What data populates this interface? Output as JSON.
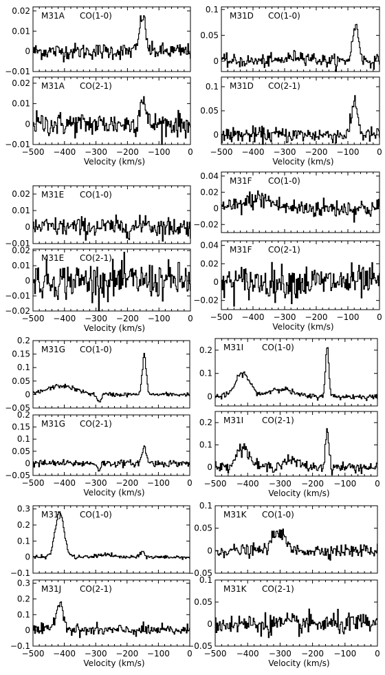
{
  "xlabel": "Velocity (km/s)",
  "chart_data": [
    {
      "type": "line",
      "source": "M31A",
      "line": "CO(1-0)",
      "xlim": [
        -500,
        0
      ],
      "ylim": [
        -0.01,
        0.022
      ],
      "yticks": [
        "0.02",
        "0.01",
        "0",
        "−0.01"
      ],
      "ytick_values": [
        0.02,
        0.01,
        0,
        -0.01
      ],
      "xticks": [],
      "xlabel": "",
      "peaks": [
        {
          "center": -152,
          "width": 9,
          "amp": 0.018
        }
      ],
      "noise": 0.002
    },
    {
      "type": "line",
      "source": "M31A",
      "line": "CO(2-1)",
      "xlim": [
        -500,
        0
      ],
      "ylim": [
        -0.01,
        0.023
      ],
      "yticks": [
        "0.02",
        "0.01",
        "0",
        "−0.01"
      ],
      "ytick_values": [
        0.02,
        0.01,
        0,
        -0.01
      ],
      "xticks": [
        "−500",
        "−400",
        "−300",
        "−200",
        "−100",
        "0"
      ],
      "xlabel": "Velocity (km/s)",
      "peaks": [
        {
          "center": -152,
          "width": 8,
          "amp": 0.014
        }
      ],
      "noise": 0.003
    },
    {
      "type": "line",
      "source": "M31D",
      "line": "CO(1-0)",
      "xlim": [
        -500,
        0
      ],
      "ylim": [
        -0.02,
        0.105
      ],
      "yticks": [
        "0.1",
        "0.05",
        "0"
      ],
      "ytick_values": [
        0.1,
        0.05,
        0
      ],
      "xticks": [],
      "xlabel": "",
      "peaks": [
        {
          "center": -75,
          "width": 10,
          "amp": 0.068
        },
        {
          "center": -250,
          "width": 35,
          "amp": 0.01
        }
      ],
      "noise": 0.006
    },
    {
      "type": "line",
      "source": "M31D",
      "line": "CO(2-1)",
      "xlim": [
        -500,
        0
      ],
      "ylim": [
        -0.02,
        0.12
      ],
      "yticks": [
        "0.1",
        "0.05",
        "0"
      ],
      "ytick_values": [
        0.1,
        0.05,
        0
      ],
      "xticks": [
        "−500",
        "−400",
        "−300",
        "−200",
        "−100",
        "0"
      ],
      "xlabel": "Velocity (km/s)",
      "peaks": [
        {
          "center": -78,
          "width": 9,
          "amp": 0.072
        }
      ],
      "noise": 0.008
    },
    {
      "type": "line",
      "source": "M31E",
      "line": "CO(1-0)",
      "xlim": [
        -500,
        0
      ],
      "ylim": [
        -0.01,
        0.025
      ],
      "yticks": [
        "0.02",
        "0.01",
        "0",
        "−0.01"
      ],
      "ytick_values": [
        0.02,
        0.01,
        0,
        -0.01
      ],
      "xticks": [],
      "xlabel": "",
      "peaks": [
        {
          "center": -140,
          "width": 5,
          "amp": 0.006
        }
      ],
      "noise": 0.003
    },
    {
      "type": "line",
      "source": "M31E",
      "line": "CO(2-1)",
      "xlim": [
        -500,
        0
      ],
      "ylim": [
        -0.02,
        0.021
      ],
      "yticks": [
        "0.02",
        "0.01",
        "0",
        "−0.01",
        "−0.02"
      ],
      "ytick_values": [
        0.02,
        0.01,
        0,
        -0.01,
        -0.02
      ],
      "xticks": [
        "−500",
        "−400",
        "−300",
        "−200",
        "−100",
        "0"
      ],
      "xlabel": "Velocity (km/s)",
      "peaks": [],
      "noise": 0.006
    },
    {
      "type": "line",
      "source": "M31F",
      "line": "CO(1-0)",
      "xlim": [
        -500,
        0
      ],
      "ylim": [
        -0.03,
        0.045
      ],
      "yticks": [
        "0.04",
        "0.02",
        "0",
        "−0.02"
      ],
      "ytick_values": [
        0.04,
        0.02,
        0,
        -0.02
      ],
      "xticks": [],
      "xlabel": "",
      "peaks": [
        {
          "center": -380,
          "width": 40,
          "amp": 0.012
        }
      ],
      "noise": 0.006
    },
    {
      "type": "line",
      "source": "M31F",
      "line": "CO(2-1)",
      "xlim": [
        -500,
        0
      ],
      "ylim": [
        -0.03,
        0.045
      ],
      "yticks": [
        "0.04",
        "0.02",
        "0",
        "−0.02"
      ],
      "ytick_values": [
        0.04,
        0.02,
        0,
        -0.02
      ],
      "xticks": [
        "−500",
        "−400",
        "−300",
        "−200",
        "−100",
        "0"
      ],
      "xlabel": "Velocity (km/s)",
      "peaks": [],
      "noise": 0.009
    },
    {
      "type": "line",
      "source": "M31G",
      "line": "CO(1-0)",
      "xlim": [
        -500,
        0
      ],
      "ylim": [
        -0.05,
        0.2
      ],
      "yticks": [
        "0.2",
        "0.15",
        "0.1",
        "0.05",
        "0",
        "−0.05"
      ],
      "ytick_values": [
        0.2,
        0.15,
        0.1,
        0.05,
        0,
        -0.05
      ],
      "xticks": [],
      "xlabel": "",
      "peaks": [
        {
          "center": -145,
          "width": 6,
          "amp": 0.15
        },
        {
          "center": -410,
          "width": 45,
          "amp": 0.032
        },
        {
          "center": -290,
          "width": 6,
          "amp": -0.03
        }
      ],
      "noise": 0.004
    },
    {
      "type": "line",
      "source": "M31G",
      "line": "CO(2-1)",
      "xlim": [
        -500,
        0
      ],
      "ylim": [
        -0.05,
        0.2
      ],
      "yticks": [
        "0.2",
        "0.15",
        "0.1",
        "0.05",
        "0",
        "−0.05"
      ],
      "ytick_values": [
        0.2,
        0.15,
        0.1,
        0.05,
        0,
        -0.05
      ],
      "xticks": [
        "−500",
        "−400",
        "−300",
        "−200",
        "−100",
        "0"
      ],
      "xlabel": "Velocity (km/s)",
      "peaks": [
        {
          "center": -145,
          "width": 7,
          "amp": 0.065
        },
        {
          "center": -290,
          "width": 5,
          "amp": -0.025
        }
      ],
      "noise": 0.007
    },
    {
      "type": "line",
      "source": "M31I",
      "line": "CO(1-0)",
      "xlim": [
        -500,
        0
      ],
      "ylim": [
        -0.04,
        0.25
      ],
      "yticks": [
        "0.2",
        "0.1",
        "0"
      ],
      "ytick_values": [
        0.2,
        0.1,
        0
      ],
      "xticks": [],
      "xlabel": "",
      "peaks": [
        {
          "center": -155,
          "width": 5,
          "amp": 0.22
        },
        {
          "center": -415,
          "width": 22,
          "amp": 0.1
        },
        {
          "center": -300,
          "width": 35,
          "amp": 0.035
        }
      ],
      "noise": 0.006
    },
    {
      "type": "line",
      "source": "M31I",
      "line": "CO(2-1)",
      "xlim": [
        -500,
        0
      ],
      "ylim": [
        -0.04,
        0.25
      ],
      "yticks": [
        "0.2",
        "0.1",
        "0"
      ],
      "ytick_values": [
        0.2,
        0.1,
        0
      ],
      "xticks": [
        "−500",
        "−400",
        "−300",
        "−200",
        "−100",
        "0"
      ],
      "xlabel": "Velocity (km/s)",
      "peaks": [
        {
          "center": -155,
          "width": 5,
          "amp": 0.17
        },
        {
          "center": -415,
          "width": 20,
          "amp": 0.09
        },
        {
          "center": -270,
          "width": 25,
          "amp": 0.03
        }
      ],
      "noise": 0.012
    },
    {
      "type": "line",
      "source": "M31J",
      "line": "CO(1-0)",
      "xlim": [
        -500,
        0
      ],
      "ylim": [
        -0.1,
        0.32
      ],
      "yticks": [
        "0.3",
        "0.2",
        "0.1",
        "0",
        "−0.1"
      ],
      "ytick_values": [
        0.3,
        0.2,
        0.1,
        0,
        -0.1
      ],
      "xticks": [],
      "xlabel": "",
      "peaks": [
        {
          "center": -415,
          "width": 14,
          "amp": 0.28
        },
        {
          "center": -150,
          "width": 6,
          "amp": 0.035
        },
        {
          "center": -270,
          "width": 20,
          "amp": 0.018
        }
      ],
      "noise": 0.006
    },
    {
      "type": "line",
      "source": "M31J",
      "line": "CO(2-1)",
      "xlim": [
        -500,
        0
      ],
      "ylim": [
        -0.1,
        0.32
      ],
      "yticks": [
        "0.3",
        "0.2",
        "0.1",
        "0",
        "−0.1"
      ],
      "ytick_values": [
        0.3,
        0.2,
        0.1,
        0,
        -0.1
      ],
      "xticks": [
        "−500",
        "−400",
        "−300",
        "−200",
        "−100",
        "0"
      ],
      "xlabel": "Velocity (km/s)",
      "peaks": [
        {
          "center": -415,
          "width": 13,
          "amp": 0.17
        }
      ],
      "noise": 0.018
    },
    {
      "type": "line",
      "source": "M31K",
      "line": "CO(1-0)",
      "xlim": [
        -500,
        0
      ],
      "ylim": [
        -0.05,
        0.1
      ],
      "yticks": [
        "0.1",
        "0.05",
        "0",
        "−0.05"
      ],
      "ytick_values": [
        0.1,
        0.05,
        0,
        -0.05
      ],
      "xticks": [],
      "xlabel": "",
      "peaks": [
        {
          "center": -305,
          "width": 18,
          "amp": 0.045
        }
      ],
      "noise": 0.007
    },
    {
      "type": "line",
      "source": "M31K",
      "line": "CO(2-1)",
      "xlim": [
        -500,
        0
      ],
      "ylim": [
        -0.05,
        0.1
      ],
      "yticks": [
        "0.1",
        "0.05",
        "0",
        "−0.05"
      ],
      "ytick_values": [
        0.1,
        0.05,
        0,
        -0.05
      ],
      "xticks": [
        "−500",
        "−400",
        "−300",
        "−200",
        "−100",
        "0"
      ],
      "xlabel": "Velocity (km/s)",
      "peaks": [],
      "noise": 0.012
    }
  ]
}
